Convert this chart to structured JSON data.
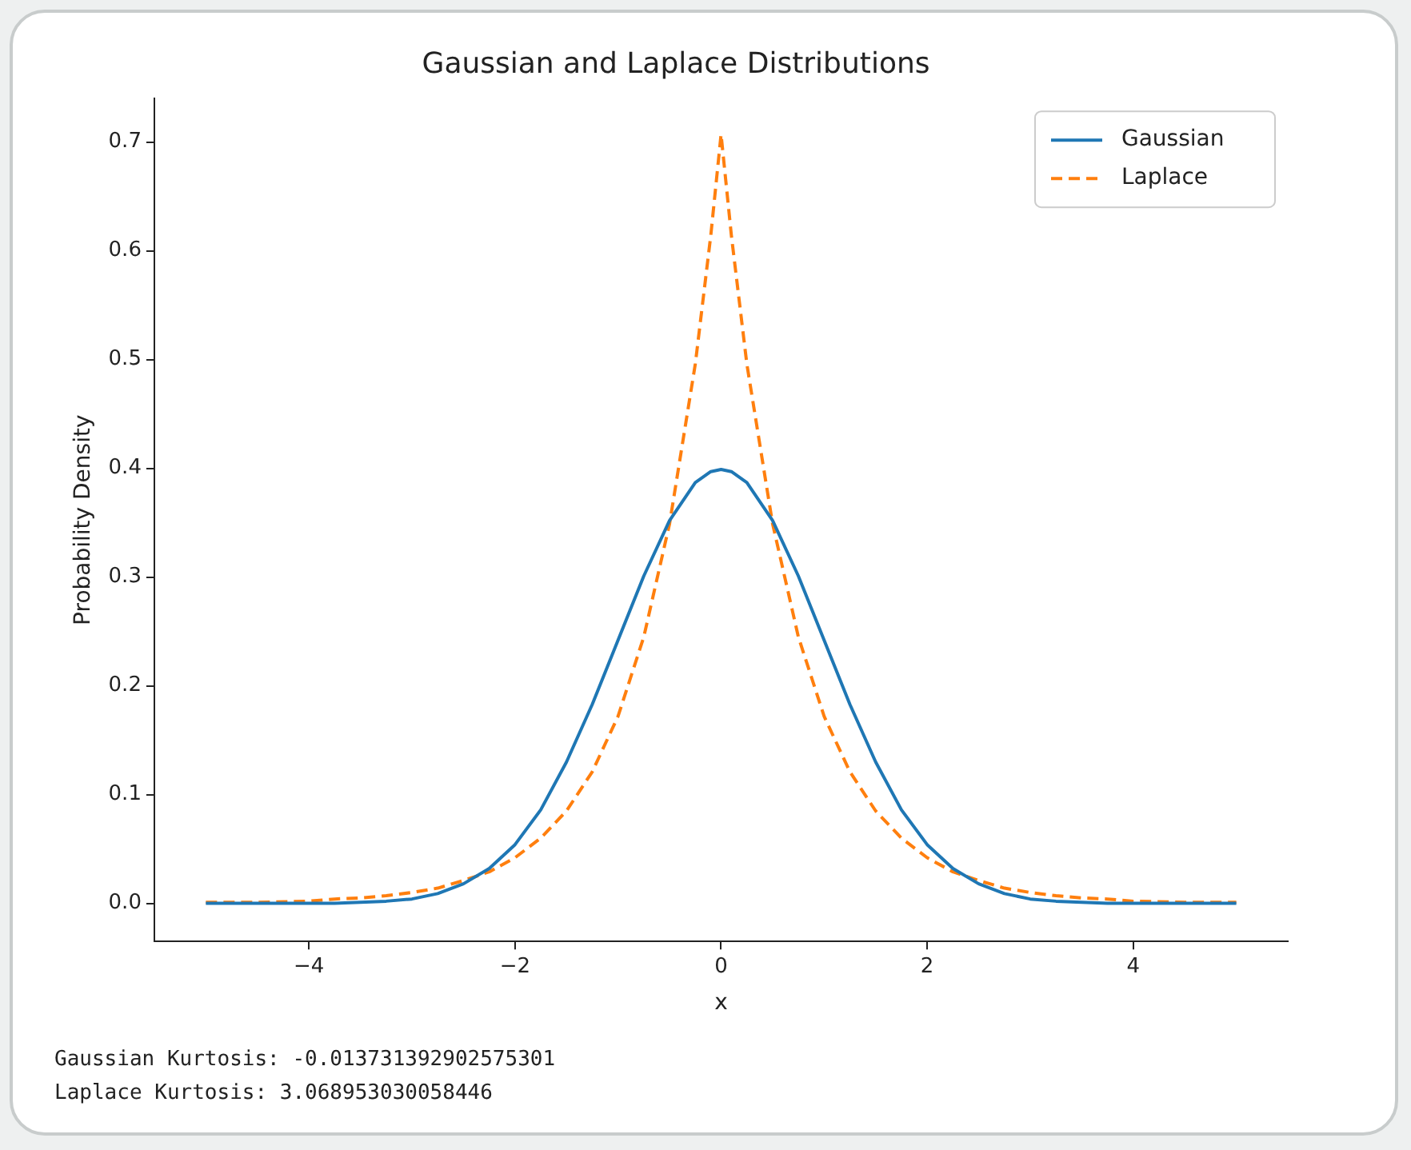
{
  "chart_data": {
    "type": "line",
    "title": "Gaussian and Laplace Distributions",
    "xlabel": "x",
    "ylabel": "Probability Density",
    "xlim": [
      -5.5,
      5.5
    ],
    "xticks": [
      -4,
      -2,
      0,
      2,
      4
    ],
    "ylim": [
      -0.035,
      0.74
    ],
    "yticks": [
      {
        "value": 0,
        "label": "0.0"
      },
      0.1,
      0.2,
      0.3,
      0.4,
      0.5,
      0.6,
      0.7
    ],
    "grid": false,
    "legend": "top right",
    "marker": "none",
    "series": [
      {
        "name": "Gaussian",
        "color": "#1f77b4",
        "line_style": "solid",
        "x": [
          -5,
          -4.5,
          -4,
          -3.75,
          -3.5,
          -3.25,
          -3,
          -2.75,
          -2.5,
          -2.25,
          -2,
          -1.75,
          -1.5,
          -1.25,
          -1,
          -0.75,
          -0.5,
          -0.25,
          -0.1,
          0,
          0.1,
          0.25,
          0.5,
          0.75,
          1,
          1.25,
          1.5,
          1.75,
          2,
          2.25,
          2.5,
          2.75,
          3,
          3.25,
          3.5,
          3.75,
          4,
          4.5,
          5
        ],
        "values": [
          0,
          0,
          0,
          0,
          0.001,
          0.002,
          0.004,
          0.009,
          0.018,
          0.032,
          0.054,
          0.086,
          0.13,
          0.183,
          0.242,
          0.301,
          0.352,
          0.387,
          0.397,
          0.399,
          0.397,
          0.387,
          0.352,
          0.301,
          0.242,
          0.183,
          0.13,
          0.086,
          0.054,
          0.032,
          0.018,
          0.009,
          0.004,
          0.002,
          0.001,
          0,
          0,
          0,
          0
        ]
      },
      {
        "name": "Laplace",
        "color": "#ff7f0e",
        "line_style": "dashed",
        "x": [
          -5,
          -4.5,
          -4,
          -3.75,
          -3.5,
          -3.25,
          -3,
          -2.75,
          -2.5,
          -2.25,
          -2,
          -1.75,
          -1.5,
          -1.25,
          -1,
          -0.75,
          -0.5,
          -0.25,
          -0.1,
          0,
          0.1,
          0.25,
          0.5,
          0.75,
          1,
          1.25,
          1.5,
          1.75,
          2,
          2.25,
          2.5,
          2.75,
          3,
          3.25,
          3.5,
          3.75,
          4,
          4.5,
          5
        ],
        "values": [
          0.001,
          0.001,
          0.002,
          0.004,
          0.005,
          0.007,
          0.01,
          0.014,
          0.021,
          0.029,
          0.042,
          0.06,
          0.085,
          0.121,
          0.172,
          0.245,
          0.349,
          0.496,
          0.614,
          0.707,
          0.614,
          0.496,
          0.349,
          0.245,
          0.172,
          0.121,
          0.085,
          0.06,
          0.042,
          0.029,
          0.021,
          0.014,
          0.01,
          0.007,
          0.005,
          0.004,
          0.002,
          0.001,
          0.001
        ]
      }
    ],
    "annotations": [
      "Gaussian Kurtosis: -0.013731392902575301",
      "Laplace Kurtosis: 3.068953030058446"
    ]
  }
}
